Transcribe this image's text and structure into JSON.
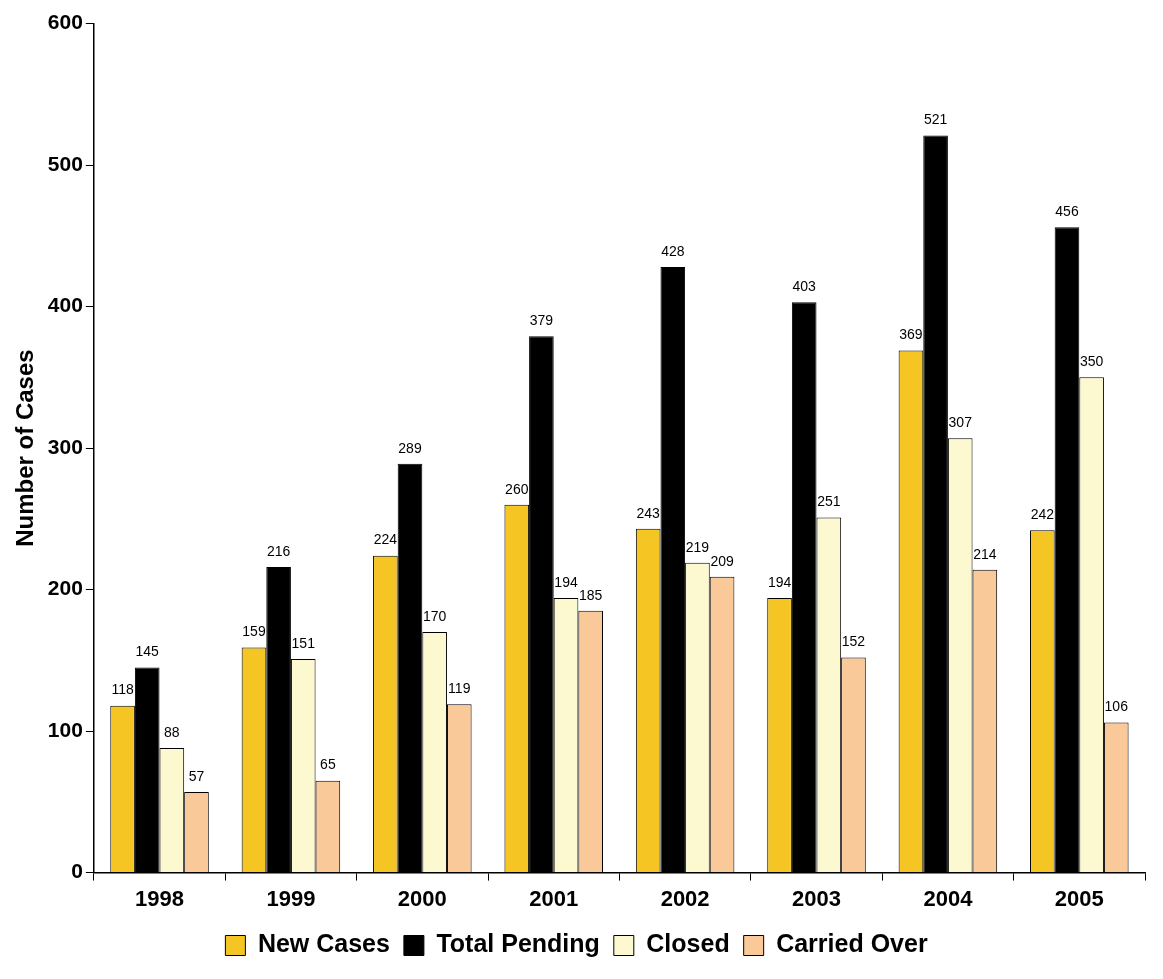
{
  "chart_data": {
    "type": "bar",
    "ylabel": "Number of Cases",
    "categories": [
      "1998",
      "1999",
      "2000",
      "2001",
      "2002",
      "2003",
      "2004",
      "2005"
    ],
    "series": [
      {
        "name": "New Cases",
        "color": "#f5c623",
        "values": [
          118,
          159,
          224,
          260,
          243,
          194,
          369,
          242
        ]
      },
      {
        "name": "Total Pending",
        "color": "#000000",
        "values": [
          145,
          216,
          289,
          379,
          428,
          403,
          521,
          456
        ]
      },
      {
        "name": "Closed",
        "color": "#fcf8cf",
        "values": [
          88,
          151,
          170,
          194,
          219,
          251,
          307,
          350
        ]
      },
      {
        "name": "Carried Over",
        "color": "#f9c99a",
        "values": [
          57,
          65,
          119,
          185,
          209,
          152,
          214,
          106
        ]
      }
    ],
    "ylim": [
      0,
      600
    ],
    "yticks": [
      0,
      100,
      200,
      300,
      400,
      500,
      600
    ],
    "grid": false,
    "legend": "bottom",
    "data_labels": true
  }
}
